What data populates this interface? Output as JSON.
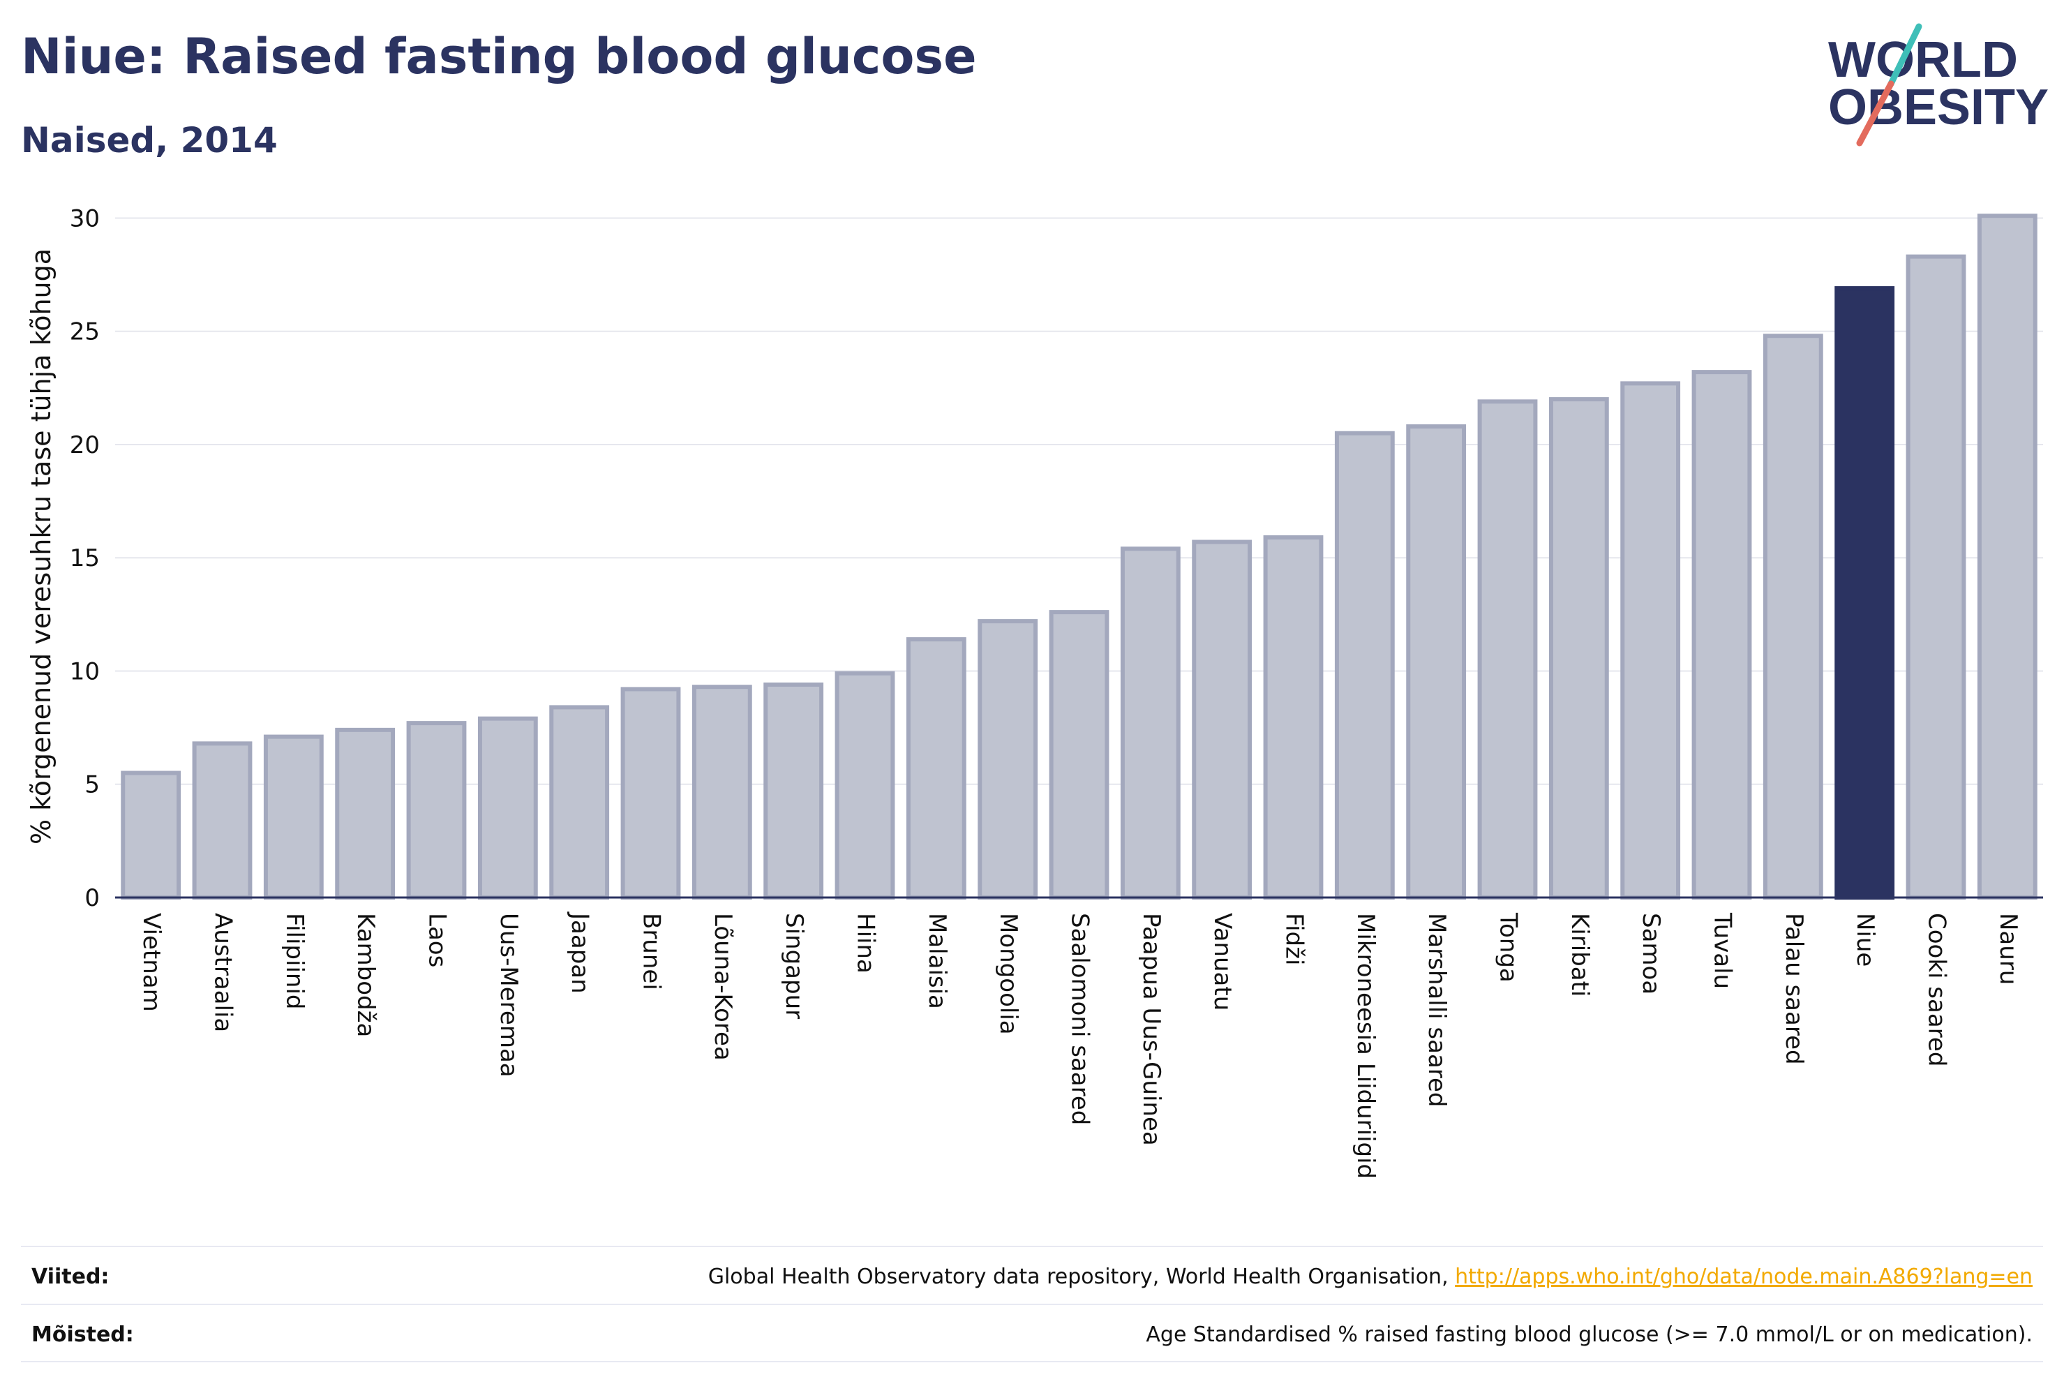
{
  "header": {
    "title": "Niue: Raised fasting blood glucose",
    "subtitle": "Naised, 2014"
  },
  "logo": {
    "line1": "WORLD",
    "line2": "OBESITY",
    "colors": {
      "text": "#2b3361",
      "accent_teal": "#3fbfb8",
      "accent_red": "#e36b5d"
    }
  },
  "chart_data": {
    "type": "bar",
    "title": "",
    "ylabel": "% kõrgenenud veresuhkru tase tühja kõhuga",
    "xlabel": "",
    "ylim": [
      0,
      31
    ],
    "yticks": [
      0,
      5,
      10,
      15,
      20,
      25,
      30
    ],
    "categories": [
      "Vietnam",
      "Austraalia",
      "Filipiinid",
      "Kambodža",
      "Laos",
      "Uus-Meremaa",
      "Jaapan",
      "Brunei",
      "Lõuna-Korea",
      "Singapur",
      "Hiina",
      "Malaisia",
      "Mongoolia",
      "Saalomoni saared",
      "Paapua Uus-Guinea",
      "Vanuatu",
      "Fidži",
      "Mikroneesia Liiduriigid",
      "Marshalli saared",
      "Tonga",
      "Kiribati",
      "Samoa",
      "Tuvalu",
      "Palau saared",
      "Niue",
      "Cooki saared",
      "Nauru"
    ],
    "values": [
      5.5,
      6.8,
      7.1,
      7.4,
      7.7,
      7.9,
      8.4,
      9.2,
      9.3,
      9.4,
      9.9,
      11.4,
      12.2,
      12.6,
      15.4,
      15.7,
      15.9,
      20.5,
      20.8,
      21.9,
      22.0,
      22.7,
      23.2,
      24.8,
      26.9,
      28.3,
      30.1
    ],
    "highlight": "Niue",
    "colors": {
      "bar": "#bfc3d0",
      "bar_border": "#a3a8bd",
      "highlight": "#2b3361",
      "grid": "#e6e7ee",
      "axis": "#2b3361"
    },
    "grid": true
  },
  "footer": {
    "sources_label": "Viited:",
    "sources_text": "Global Health Observatory data repository, World Health Organisation, ",
    "sources_link": "http://apps.who.int/gho/data/node.main.A869?lang=en",
    "definitions_label": "Mõisted:",
    "definitions_text": "Age Standardised % raised fasting blood glucose (>= 7.0 mmol/L or on medication)."
  }
}
